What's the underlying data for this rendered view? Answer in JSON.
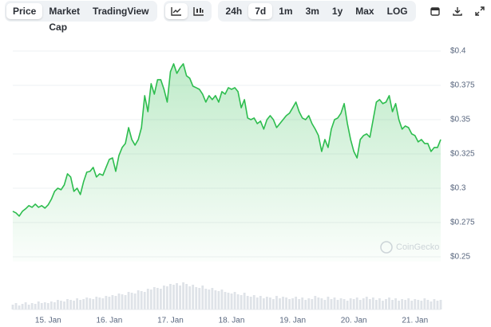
{
  "toolbar": {
    "tabs": [
      "Price",
      "Market Cap",
      "TradingView"
    ],
    "selected_tab": 0,
    "ranges": [
      "24h",
      "7d",
      "1m",
      "3m",
      "1y",
      "Max",
      "LOG"
    ],
    "selected_range": 1
  },
  "chart_data": {
    "type": "line",
    "watermark": "CoinGecko",
    "categories": [
      null,
      null,
      null,
      null,
      null,
      null,
      null,
      null,
      null,
      null,
      null,
      "15. Jan",
      null,
      null,
      null,
      null,
      null,
      null,
      null,
      null,
      null,
      null,
      null,
      null,
      null,
      null,
      null,
      null,
      null,
      null,
      "16. Jan",
      null,
      null,
      null,
      null,
      null,
      null,
      null,
      null,
      null,
      null,
      null,
      null,
      null,
      null,
      null,
      null,
      null,
      null,
      "17. Jan",
      null,
      null,
      null,
      null,
      null,
      null,
      null,
      null,
      null,
      null,
      null,
      null,
      null,
      null,
      null,
      null,
      null,
      null,
      "18. Jan",
      null,
      null,
      null,
      null,
      null,
      null,
      null,
      null,
      null,
      null,
      null,
      null,
      null,
      null,
      null,
      null,
      null,
      null,
      "19. Jan",
      null,
      null,
      null,
      null,
      null,
      null,
      null,
      null,
      null,
      null,
      null,
      null,
      null,
      null,
      null,
      null,
      null,
      null,
      "20. Jan",
      null,
      null,
      null,
      null,
      null,
      null,
      null,
      null,
      null,
      null,
      null,
      null,
      null,
      null,
      null,
      null,
      null,
      null,
      "21. Jan",
      null,
      null,
      null,
      null,
      null,
      null,
      null,
      null
    ],
    "series": [
      {
        "color": "#2dbd4e",
        "values": [
          0.2832,
          0.282,
          0.2797,
          0.2832,
          0.285,
          0.2873,
          0.2861,
          0.2884,
          0.2861,
          0.2873,
          0.2855,
          0.2879,
          0.292,
          0.2977,
          0.3,
          0.2989,
          0.3024,
          0.3105,
          0.3082,
          0.2977,
          0.3,
          0.2954,
          0.3047,
          0.3117,
          0.3123,
          0.3152,
          0.3082,
          0.3105,
          0.3094,
          0.3152,
          0.321,
          0.3221,
          0.3123,
          0.3239,
          0.3297,
          0.3326,
          0.3442,
          0.3355,
          0.3314,
          0.3355,
          0.3442,
          0.3675,
          0.3558,
          0.3762,
          0.3686,
          0.3791,
          0.3791,
          0.3721,
          0.3628,
          0.3849,
          0.3907,
          0.3837,
          0.3878,
          0.3907,
          0.382,
          0.3802,
          0.3744,
          0.3733,
          0.3721,
          0.3686,
          0.3628,
          0.3675,
          0.3646,
          0.3675,
          0.3628,
          0.3704,
          0.3686,
          0.3733,
          0.3721,
          0.3733,
          0.3704,
          0.3587,
          0.3646,
          0.3512,
          0.35,
          0.3512,
          0.3471,
          0.3489,
          0.3431,
          0.35,
          0.3529,
          0.35,
          0.3442,
          0.3471,
          0.35,
          0.3529,
          0.3547,
          0.3587,
          0.3628,
          0.3558,
          0.3512,
          0.35,
          0.3529,
          0.3471,
          0.3431,
          0.3384,
          0.3268,
          0.3355,
          0.3297,
          0.3431,
          0.35,
          0.3512,
          0.3547,
          0.3617,
          0.3471,
          0.3355,
          0.3268,
          0.3221,
          0.3355,
          0.3384,
          0.3396,
          0.3372,
          0.35,
          0.3628,
          0.3646,
          0.3617,
          0.3628,
          0.3675,
          0.3558,
          0.3617,
          0.35,
          0.3431,
          0.3454,
          0.3442,
          0.3396,
          0.3384,
          0.3338,
          0.3355,
          0.3326,
          0.3326,
          0.3268,
          0.3297,
          0.3297,
          0.3355
        ]
      }
    ],
    "volume": {
      "color": "#dfe3e8",
      "values": [
        6,
        8,
        5,
        7,
        9,
        6,
        8,
        7,
        10,
        8,
        9,
        8,
        10,
        9,
        12,
        11,
        10,
        13,
        12,
        11,
        14,
        12,
        13,
        15,
        14,
        13,
        16,
        15,
        14,
        17,
        16,
        18,
        17,
        20,
        19,
        18,
        22,
        21,
        20,
        24,
        23,
        22,
        26,
        25,
        28,
        27,
        26,
        30,
        29,
        32,
        31,
        33,
        30,
        34,
        32,
        29,
        31,
        28,
        27,
        30,
        26,
        25,
        27,
        24,
        23,
        25,
        22,
        21,
        20,
        22,
        19,
        18,
        21,
        17,
        16,
        18,
        15,
        17,
        14,
        16,
        15,
        13,
        17,
        14,
        16,
        15,
        13,
        14,
        16,
        13,
        15,
        12,
        14,
        13,
        17,
        15,
        14,
        12,
        16,
        13,
        15,
        12,
        14,
        13,
        11,
        14,
        13,
        15,
        12,
        14,
        16,
        13,
        15,
        12,
        14,
        11,
        13,
        15,
        12,
        14,
        11,
        13,
        12,
        14,
        11,
        13,
        12,
        11,
        14,
        12,
        10,
        13,
        11,
        12
      ]
    },
    "ylim": [
      0.25,
      0.4
    ],
    "yticks": [
      {
        "value": 0.25,
        "label": "$0.25"
      },
      {
        "value": 0.275,
        "label": "$0.275"
      },
      {
        "value": 0.3,
        "label": "$0.3"
      },
      {
        "value": 0.325,
        "label": "$0.325"
      },
      {
        "value": 0.35,
        "label": "$0.35"
      },
      {
        "value": 0.375,
        "label": "$0.375"
      },
      {
        "value": 0.4,
        "label": "$0.4"
      }
    ],
    "grid": true
  }
}
